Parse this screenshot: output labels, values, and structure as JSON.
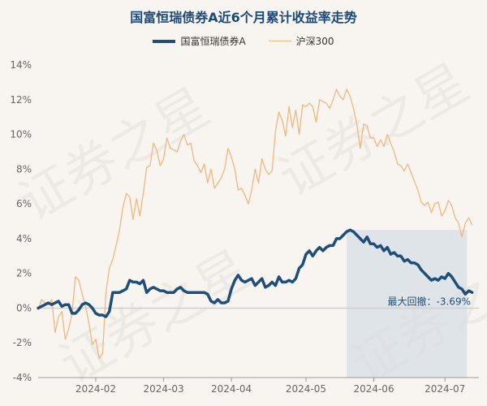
{
  "chart_data": {
    "type": "line",
    "title": "国富恒瑞债券A近6个月累计收益率走势",
    "xlabel": "",
    "ylabel": "",
    "ylim": [
      -4,
      14
    ],
    "yticks": [
      -4,
      -2,
      0,
      2,
      4,
      6,
      8,
      10,
      12,
      14
    ],
    "ytick_labels": [
      "-4%",
      "-2%",
      "0%",
      "2%",
      "4%",
      "6%",
      "8%",
      "10%",
      "12%",
      "14%"
    ],
    "xlim": [
      0,
      130
    ],
    "xticks": [
      {
        "x": 17,
        "label": "2024-02"
      },
      {
        "x": 37,
        "label": "2024-03"
      },
      {
        "x": 57,
        "label": "2024-04"
      },
      {
        "x": 79,
        "label": "2024-05"
      },
      {
        "x": 99,
        "label": "2024-06"
      },
      {
        "x": 120,
        "label": "2024-07"
      }
    ],
    "series": [
      {
        "name": "国富恒瑞债券A",
        "color": "#1f4e79",
        "points": [
          [
            0,
            0
          ],
          [
            2,
            0.2
          ],
          [
            3,
            0.3
          ],
          [
            4,
            0.2
          ],
          [
            5,
            0.3
          ],
          [
            6,
            0.4
          ],
          [
            7,
            0.1
          ],
          [
            8,
            0.2
          ],
          [
            9,
            0.2
          ],
          [
            10,
            -0.3
          ],
          [
            11,
            -0.3
          ],
          [
            12,
            -0.1
          ],
          [
            13,
            0.2
          ],
          [
            14,
            0.3
          ],
          [
            15,
            0.2
          ],
          [
            16,
            0
          ],
          [
            17,
            -0.3
          ],
          [
            18,
            -0.4
          ],
          [
            19,
            -0.4
          ],
          [
            20,
            -0.5
          ],
          [
            21,
            -0.2
          ],
          [
            22,
            0.9
          ],
          [
            23,
            0.9
          ],
          [
            24,
            0.9
          ],
          [
            25,
            1.0
          ],
          [
            26,
            1.1
          ],
          [
            27,
            1.6
          ],
          [
            28,
            1.5
          ],
          [
            29,
            1.5
          ],
          [
            30,
            1.4
          ],
          [
            31,
            1.6
          ],
          [
            32,
            0.9
          ],
          [
            33,
            1.1
          ],
          [
            34,
            1.2
          ],
          [
            35,
            1.1
          ],
          [
            36,
            1.0
          ],
          [
            37,
            1.0
          ],
          [
            38,
            0.9
          ],
          [
            39,
            0.9
          ],
          [
            40,
            0.9
          ],
          [
            41,
            1.1
          ],
          [
            42,
            1.2
          ],
          [
            43,
            1.0
          ],
          [
            44,
            0.9
          ],
          [
            45,
            0.9
          ],
          [
            46,
            0.9
          ],
          [
            47,
            0.9
          ],
          [
            48,
            0.9
          ],
          [
            49,
            0.9
          ],
          [
            50,
            0.8
          ],
          [
            51,
            0.4
          ],
          [
            52,
            0.3
          ],
          [
            53,
            0.5
          ],
          [
            54,
            0.3
          ],
          [
            55,
            0.3
          ],
          [
            56,
            0.4
          ],
          [
            57,
            1.1
          ],
          [
            58,
            1.6
          ],
          [
            59,
            1.9
          ],
          [
            60,
            1.6
          ],
          [
            61,
            1.5
          ],
          [
            62,
            1.6
          ],
          [
            63,
            1.7
          ],
          [
            64,
            1.3
          ],
          [
            65,
            1.5
          ],
          [
            66,
            1.7
          ],
          [
            67,
            1.2
          ],
          [
            68,
            1.3
          ],
          [
            69,
            1.5
          ],
          [
            70,
            1.3
          ],
          [
            71,
            1.8
          ],
          [
            72,
            1.5
          ],
          [
            73,
            1.5
          ],
          [
            74,
            1.6
          ],
          [
            75,
            1.5
          ],
          [
            76,
            1.7
          ],
          [
            77,
            2.3
          ],
          [
            78,
            2.5
          ],
          [
            79,
            3.1
          ],
          [
            80,
            3.3
          ],
          [
            81,
            3.0
          ],
          [
            82,
            3.3
          ],
          [
            83,
            3.5
          ],
          [
            84,
            3.3
          ],
          [
            85,
            3.5
          ],
          [
            86,
            3.6
          ],
          [
            87,
            3.6
          ],
          [
            88,
            4.0
          ],
          [
            89,
            4.0
          ],
          [
            90,
            4.2
          ],
          [
            91,
            4.4
          ],
          [
            92,
            4.5
          ],
          [
            93,
            4.4
          ],
          [
            94,
            4.2
          ],
          [
            95,
            4.0
          ],
          [
            96,
            3.8
          ],
          [
            97,
            4.1
          ],
          [
            98,
            3.7
          ],
          [
            99,
            3.7
          ],
          [
            100,
            3.5
          ],
          [
            101,
            3.6
          ],
          [
            102,
            3.3
          ],
          [
            103,
            3.5
          ],
          [
            104,
            3.1
          ],
          [
            105,
            3.2
          ],
          [
            106,
            3.0
          ],
          [
            107,
            3.0
          ],
          [
            108,
            2.7
          ],
          [
            109,
            2.8
          ],
          [
            110,
            2.6
          ],
          [
            111,
            2.6
          ],
          [
            112,
            2.5
          ],
          [
            113,
            2.2
          ],
          [
            114,
            2.0
          ],
          [
            115,
            1.8
          ],
          [
            116,
            1.6
          ],
          [
            117,
            1.7
          ],
          [
            118,
            1.6
          ],
          [
            119,
            1.8
          ],
          [
            120,
            1.7
          ],
          [
            121,
            2.0
          ],
          [
            122,
            1.8
          ],
          [
            123,
            1.5
          ],
          [
            124,
            1.2
          ],
          [
            125,
            1.1
          ],
          [
            126,
            0.8
          ],
          [
            127,
            1.0
          ],
          [
            128,
            0.9
          ]
        ]
      },
      {
        "name": "沪深300",
        "color": "#f0b77e",
        "points": [
          [
            0,
            -0.1
          ],
          [
            1,
            0.5
          ],
          [
            2,
            0.3
          ],
          [
            3,
            0.2
          ],
          [
            4,
            0.5
          ],
          [
            5,
            -1.4
          ],
          [
            6,
            -0.5
          ],
          [
            7,
            -0.2
          ],
          [
            8,
            -1.8
          ],
          [
            9,
            -1.2
          ],
          [
            10,
            -0.3
          ],
          [
            11,
            1.8
          ],
          [
            12,
            1.6
          ],
          [
            13,
            0.8
          ],
          [
            14,
            0.1
          ],
          [
            15,
            -0.9
          ],
          [
            16,
            -2.1
          ],
          [
            17,
            -1.8
          ],
          [
            18,
            -2.9
          ],
          [
            19,
            -2.6
          ],
          [
            20,
            0.9
          ],
          [
            21,
            2.3
          ],
          [
            22,
            2.8
          ],
          [
            23,
            3.6
          ],
          [
            24,
            4.5
          ],
          [
            25,
            5.8
          ],
          [
            26,
            6.6
          ],
          [
            27,
            6.4
          ],
          [
            28,
            5.1
          ],
          [
            29,
            6.3
          ],
          [
            30,
            5.3
          ],
          [
            31,
            6.6
          ],
          [
            32,
            8.1
          ],
          [
            33,
            8.2
          ],
          [
            34,
            9.5
          ],
          [
            35,
            9.1
          ],
          [
            36,
            8.2
          ],
          [
            37,
            8.6
          ],
          [
            38,
            9.8
          ],
          [
            39,
            9.2
          ],
          [
            40,
            9.1
          ],
          [
            41,
            9.0
          ],
          [
            42,
            9.6
          ],
          [
            43,
            10.0
          ],
          [
            44,
            9.4
          ],
          [
            45,
            9.5
          ],
          [
            46,
            8.5
          ],
          [
            47,
            8.2
          ],
          [
            48,
            7.8
          ],
          [
            49,
            8.3
          ],
          [
            50,
            7.2
          ],
          [
            51,
            8.0
          ],
          [
            52,
            6.9
          ],
          [
            53,
            7.2
          ],
          [
            54,
            7.5
          ],
          [
            55,
            8.0
          ],
          [
            56,
            9.2
          ],
          [
            57,
            8.7
          ],
          [
            58,
            8.0
          ],
          [
            59,
            6.8
          ],
          [
            60,
            6.9
          ],
          [
            61,
            6.5
          ],
          [
            62,
            6.0
          ],
          [
            63,
            6.8
          ],
          [
            64,
            8.0
          ],
          [
            65,
            7.2
          ],
          [
            66,
            8.6
          ],
          [
            67,
            8.0
          ],
          [
            68,
            7.7
          ],
          [
            69,
            7.9
          ],
          [
            70,
            10.2
          ],
          [
            71,
            11.3
          ],
          [
            72,
            10.8
          ],
          [
            73,
            9.9
          ],
          [
            74,
            11.6
          ],
          [
            75,
            10.4
          ],
          [
            76,
            11.4
          ],
          [
            77,
            10.0
          ],
          [
            78,
            11.7
          ],
          [
            79,
            11.6
          ],
          [
            80,
            11.8
          ],
          [
            81,
            11.6
          ],
          [
            82,
            10.7
          ],
          [
            83,
            12.0
          ],
          [
            84,
            11.9
          ],
          [
            85,
            11.8
          ],
          [
            86,
            11.5
          ],
          [
            87,
            12.0
          ],
          [
            88,
            12.6
          ],
          [
            89,
            12.2
          ],
          [
            90,
            12.0
          ],
          [
            91,
            12.6
          ],
          [
            92,
            12.2
          ],
          [
            93,
            11.5
          ],
          [
            94,
            10.6
          ],
          [
            95,
            9.2
          ],
          [
            96,
            10.6
          ],
          [
            97,
            10.5
          ],
          [
            98,
            9.8
          ],
          [
            99,
            9.8
          ],
          [
            100,
            9.3
          ],
          [
            101,
            9.7
          ],
          [
            102,
            9.3
          ],
          [
            103,
            10.0
          ],
          [
            104,
            9.5
          ],
          [
            105,
            9.0
          ],
          [
            106,
            8.3
          ],
          [
            107,
            8.2
          ],
          [
            108,
            7.9
          ],
          [
            109,
            8.3
          ],
          [
            110,
            7.8
          ],
          [
            111,
            7.3
          ],
          [
            112,
            6.8
          ],
          [
            113,
            6.1
          ],
          [
            114,
            5.9
          ],
          [
            115,
            6.1
          ],
          [
            116,
            5.5
          ],
          [
            117,
            6.0
          ],
          [
            118,
            6.1
          ],
          [
            119,
            5.3
          ],
          [
            120,
            5.6
          ],
          [
            121,
            6.2
          ],
          [
            122,
            5.9
          ],
          [
            123,
            5.2
          ],
          [
            124,
            4.9
          ],
          [
            125,
            4.1
          ],
          [
            126,
            4.9
          ],
          [
            127,
            5.2
          ],
          [
            128,
            4.8
          ]
        ]
      }
    ],
    "drawdown": {
      "start_x": 91,
      "end_x": 126.5,
      "label": "最大回撤：-3.69%"
    },
    "legend": "top-center",
    "grid": false
  },
  "watermark_text": "证券之星"
}
